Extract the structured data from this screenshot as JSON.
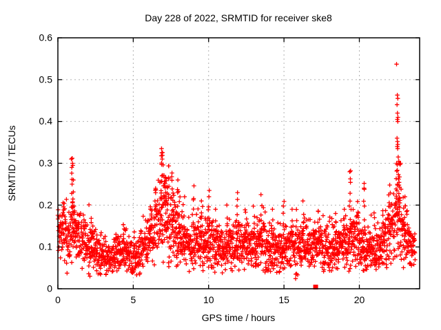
{
  "chart_data": {
    "type": "scatter",
    "title": "Day 228 of 2022, SRMTID for receiver ske8",
    "xlabel": "GPS time / hours",
    "ylabel": "SRMTID / TECUs",
    "xlim": [
      0,
      24
    ],
    "ylim": [
      0,
      0.6
    ],
    "xticks": [
      0,
      5,
      10,
      15,
      20
    ],
    "yticks": [
      0,
      0.1,
      0.2,
      0.3,
      0.4,
      0.5,
      0.6
    ],
    "grid": "dashed",
    "grid_color": "#b0b0b0",
    "border_color": "#000000",
    "marker": "plus",
    "marker_color": "#ff0000",
    "legend_position": "none",
    "series": [
      {
        "name": "srmtid-samples",
        "style": "plus-markers",
        "t_start": 0.0,
        "t_end": 23.7,
        "n_points": 2300,
        "seed": 228,
        "noise_scale": 0.55,
        "baseline_envelope": {
          "hours": [
            0,
            0.5,
            1,
            1.5,
            2,
            2.5,
            3,
            3.5,
            4,
            4.5,
            5,
            5.5,
            6,
            6.5,
            7,
            7.3,
            7.6,
            8,
            8.5,
            9,
            9.5,
            10,
            10.5,
            11,
            11.5,
            12,
            12.5,
            13,
            13.5,
            14,
            14.5,
            15,
            15.5,
            16,
            16.5,
            17,
            17.5,
            18,
            18.5,
            19,
            19.5,
            20,
            20.5,
            21,
            21.5,
            22,
            22.3,
            22.6,
            22.9,
            23.2,
            23.5,
            23.7
          ],
          "mean": [
            0.125,
            0.13,
            0.14,
            0.115,
            0.1,
            0.09,
            0.08,
            0.068,
            0.088,
            0.092,
            0.072,
            0.09,
            0.12,
            0.155,
            0.185,
            0.165,
            0.15,
            0.125,
            0.11,
            0.105,
            0.115,
            0.12,
            0.1,
            0.095,
            0.105,
            0.1,
            0.108,
            0.1,
            0.108,
            0.1,
            0.093,
            0.1,
            0.098,
            0.1,
            0.107,
            0.1,
            0.105,
            0.1,
            0.098,
            0.105,
            0.125,
            0.108,
            0.098,
            0.09,
            0.1,
            0.13,
            0.15,
            0.17,
            0.14,
            0.115,
            0.1,
            0.095
          ]
        },
        "spike_columns": [
          [
            0.35,
            0.21,
            4
          ],
          [
            0.95,
            0.31,
            10
          ],
          [
            1.05,
            0.26,
            6
          ],
          [
            2.2,
            0.17,
            4
          ],
          [
            4.4,
            0.16,
            3
          ],
          [
            6.15,
            0.2,
            5
          ],
          [
            6.5,
            0.24,
            6
          ],
          [
            6.9,
            0.335,
            12
          ],
          [
            7.1,
            0.27,
            8
          ],
          [
            7.3,
            0.3,
            9
          ],
          [
            7.6,
            0.29,
            8
          ],
          [
            7.9,
            0.26,
            6
          ],
          [
            8.05,
            0.245,
            5
          ],
          [
            8.35,
            0.22,
            4
          ],
          [
            9.0,
            0.25,
            6
          ],
          [
            9.5,
            0.21,
            4
          ],
          [
            10.0,
            0.235,
            6
          ],
          [
            10.4,
            0.19,
            3
          ],
          [
            11.2,
            0.2,
            4
          ],
          [
            11.9,
            0.23,
            6
          ],
          [
            12.5,
            0.19,
            4
          ],
          [
            13.0,
            0.2,
            4
          ],
          [
            13.5,
            0.225,
            5
          ],
          [
            14.2,
            0.19,
            3
          ],
          [
            15.0,
            0.22,
            5
          ],
          [
            15.5,
            0.19,
            3
          ],
          [
            16.3,
            0.21,
            4
          ],
          [
            17.3,
            0.19,
            3
          ],
          [
            18.4,
            0.18,
            3
          ],
          [
            19.0,
            0.19,
            3
          ],
          [
            19.4,
            0.28,
            8
          ],
          [
            19.9,
            0.21,
            4
          ],
          [
            20.3,
            0.25,
            7
          ],
          [
            21.0,
            0.17,
            3
          ],
          [
            21.6,
            0.19,
            4
          ],
          [
            22.0,
            0.25,
            6
          ],
          [
            22.5,
            0.3,
            14
          ],
          [
            22.65,
            0.3,
            12
          ],
          [
            23.0,
            0.22,
            5
          ]
        ],
        "outlier_points": [
          [
            22.47,
            0.537
          ],
          [
            22.52,
            0.463
          ],
          [
            22.55,
            0.455
          ],
          [
            22.5,
            0.44
          ],
          [
            22.53,
            0.42
          ],
          [
            22.56,
            0.41
          ],
          [
            22.52,
            0.405
          ],
          [
            22.55,
            0.4
          ],
          [
            22.5,
            0.36
          ],
          [
            22.53,
            0.352
          ],
          [
            22.55,
            0.345
          ],
          [
            22.52,
            0.34
          ],
          [
            22.54,
            0.335
          ],
          [
            22.58,
            0.315
          ],
          [
            22.62,
            0.305
          ],
          [
            22.66,
            0.3
          ],
          [
            22.7,
            0.297
          ],
          [
            22.74,
            0.3
          ],
          [
            6.88,
            0.335
          ],
          [
            6.9,
            0.325
          ],
          [
            6.86,
            0.318
          ],
          [
            6.92,
            0.31
          ],
          [
            0.95,
            0.312
          ],
          [
            0.97,
            0.3
          ],
          [
            0.99,
            0.295
          ],
          [
            19.42,
            0.282
          ],
          [
            20.32,
            0.252
          ]
        ]
      },
      {
        "name": "gap-marker",
        "style": "filled-square",
        "points": [
          [
            17.1,
            0.004
          ]
        ]
      }
    ]
  },
  "figure": {
    "background": "#ffffff",
    "text_color": "#000000"
  }
}
